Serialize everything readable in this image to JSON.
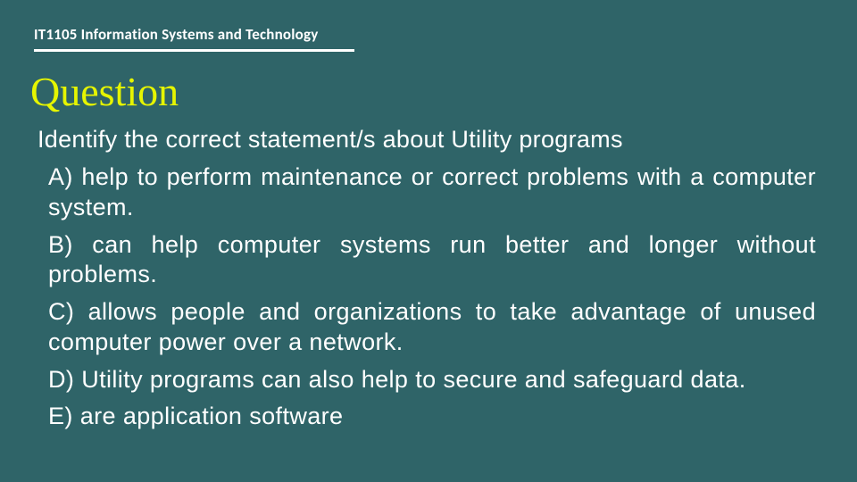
{
  "colors": {
    "background": "#2f6468",
    "course_text": "#ffffff",
    "underline": "#ffffff",
    "heading": "#e6f500",
    "body_text": "#ffffff"
  },
  "typography": {
    "course_fontsize": 17,
    "course_fontweight": 700,
    "heading_fontsize": 46,
    "heading_fontfamily": "Georgia, Times New Roman, serif",
    "body_fontsize": 27,
    "body_fontweight": 300,
    "body_fontfamily": "Calibri Light, Segoe UI Light, Segoe UI, Arial, sans-serif"
  },
  "course": "IT1105 Information Systems and Technology",
  "heading": "Question",
  "prompt": "Identify the correct statement/s about Utility programs",
  "options": {
    "a": "A) help to perform maintenance or correct problems with a computer system.",
    "b": "B) can help computer systems run better and longer without problems.",
    "c": "C) allows people and organizations to take advantage of unused computer power over a network.",
    "d": "D) Utility programs can also help to secure and safeguard data.",
    "e": "E) are application software"
  }
}
